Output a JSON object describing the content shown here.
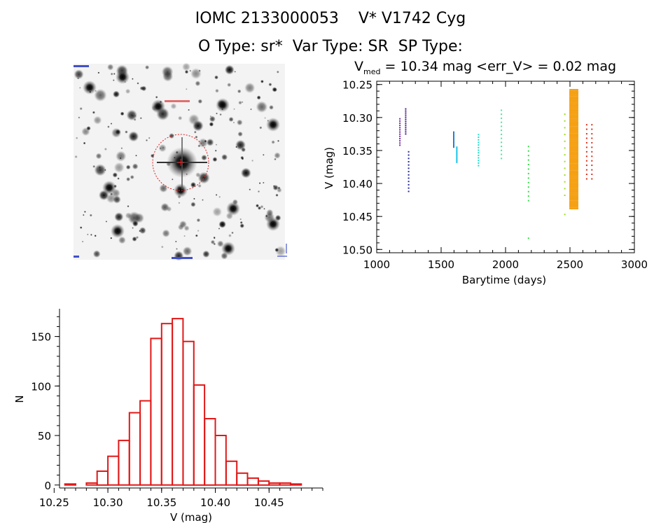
{
  "header": {
    "title_line1": "IOMC 2133000053    V* V1742 Cyg",
    "title_line2": "O Type: sr*  Var Type: SR  SP Type:",
    "stats_prefix": "V",
    "stats_sub": "med",
    "stats_rest": " = 10.34 mag <err_V> = 0.02 mag"
  },
  "chart_data": [
    {
      "type": "scatter",
      "title": "",
      "xlabel": "Barytime (days)",
      "ylabel": "V (mag)",
      "xlim": [
        1000,
        3000
      ],
      "ylim": [
        10.505,
        10.245
      ],
      "y_inverted": true,
      "xticks": [
        1000,
        1500,
        2000,
        2500,
        3000
      ],
      "xtick_labels": [
        "1000",
        "1500",
        "2000",
        "2500",
        "3000"
      ],
      "yticks": [
        10.25,
        10.3,
        10.35,
        10.4,
        10.45,
        10.5
      ],
      "ytick_labels": [
        "10.25",
        "10.30",
        "10.35",
        "10.40",
        "10.45",
        "10.50"
      ],
      "series": [
        {
          "color": "#7b2aa3",
          "x": [
            1180
          ],
          "ymin": 10.302,
          "ymax": 10.342
        },
        {
          "color": "#4a1a8c",
          "x": [
            1225
          ],
          "ymin": 10.287,
          "ymax": 10.325
        },
        {
          "color": "#2a2a9c",
          "x": [
            1248
          ],
          "ymin": 10.352,
          "ymax": 10.412
        },
        {
          "color": "#1f7fd8",
          "x": [
            1598
          ],
          "ymin": 10.322,
          "ymax": 10.345
        },
        {
          "color": "#18c3e8",
          "x": [
            1622
          ],
          "ymin": 10.345,
          "ymax": 10.368
        },
        {
          "color": "#20d8c8",
          "x": [
            1790
          ],
          "ymin": 10.326,
          "ymax": 10.373
        },
        {
          "color": "#3ee8a0",
          "x": [
            1968
          ],
          "ymin": 10.289,
          "ymax": 10.362
        },
        {
          "color": "#38d84a",
          "x": [
            2178
          ],
          "ymin": 10.344,
          "ymax": 10.426,
          "extra": [
            10.483
          ]
        },
        {
          "color": "#9ae020",
          "x": [
            2460
          ],
          "ymin": 10.295,
          "ymax": 10.418,
          "extra": [
            10.447
          ]
        },
        {
          "color": "#f5a013",
          "x": [
            2500,
            2560
          ],
          "ymin": 10.258,
          "ymax": 10.438,
          "dense": true
        },
        {
          "color": "#d83018",
          "x": [
            2630,
            2670
          ],
          "ymin": 10.311,
          "ymax": 10.393
        }
      ]
    },
    {
      "type": "bar",
      "title": "",
      "xlabel": "V (mag)",
      "ylabel": "N",
      "xlim": [
        10.255,
        10.5
      ],
      "ylim": [
        -3,
        178
      ],
      "xticks": [
        10.25,
        10.3,
        10.35,
        10.4,
        10.45
      ],
      "xtick_labels": [
        "10.25",
        "10.30",
        "10.35",
        "10.40",
        "10.45"
      ],
      "yticks": [
        0,
        50,
        100,
        150
      ],
      "ytick_labels": [
        "0",
        "50",
        "100",
        "150"
      ],
      "bin_width": 0.01,
      "bin_starts": [
        10.26,
        10.27,
        10.28,
        10.29,
        10.3,
        10.31,
        10.32,
        10.33,
        10.34,
        10.35,
        10.36,
        10.37,
        10.38,
        10.39,
        10.4,
        10.41,
        10.42,
        10.43,
        10.44,
        10.45,
        10.46,
        10.47
      ],
      "values": [
        1,
        0,
        2,
        14,
        29,
        45,
        73,
        85,
        148,
        163,
        168,
        145,
        101,
        67,
        50,
        24,
        12,
        7,
        4,
        2,
        2,
        0
      ],
      "extra_bins": [
        {
          "start": 10.47,
          "value": 1
        }
      ],
      "color": "#e01818"
    }
  ],
  "image_panel": {
    "marker_color": "#e02020",
    "label_color": "#2030c0"
  }
}
